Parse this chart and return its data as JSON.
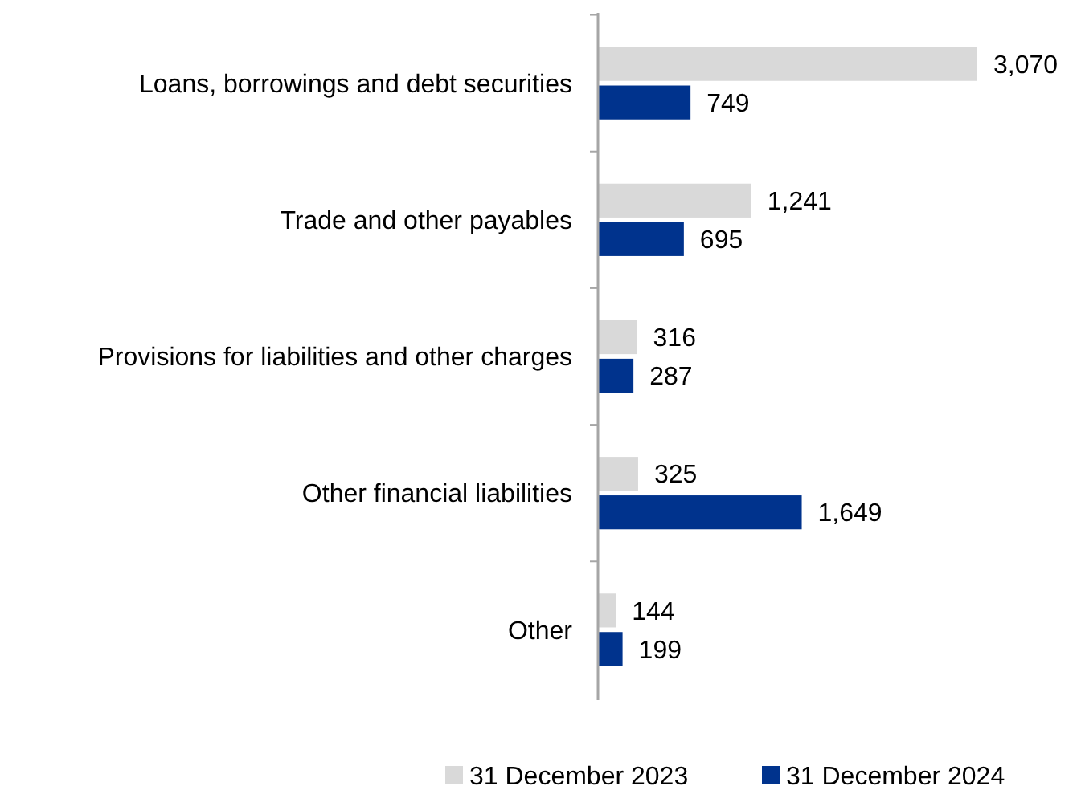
{
  "chart_data": {
    "type": "bar",
    "orientation": "horizontal",
    "categories": [
      "Loans, borrowings and debt securities",
      "Trade and other payables",
      "Provisions for liabilities and other charges",
      "Other financial liabilities",
      "Other"
    ],
    "series": [
      {
        "name": "31 December 2023",
        "color": "#d9d9d9",
        "values": [
          3070,
          1241,
          316,
          325,
          144
        ],
        "value_labels": [
          "3,070",
          "1,241",
          "316",
          "325",
          "144"
        ]
      },
      {
        "name": "31 December 2024",
        "color": "#00338d",
        "values": [
          749,
          695,
          287,
          1649,
          199
        ],
        "value_labels": [
          "749",
          "695",
          "287",
          "1,649",
          "199"
        ]
      }
    ],
    "legend": "bottom",
    "grid": false
  }
}
